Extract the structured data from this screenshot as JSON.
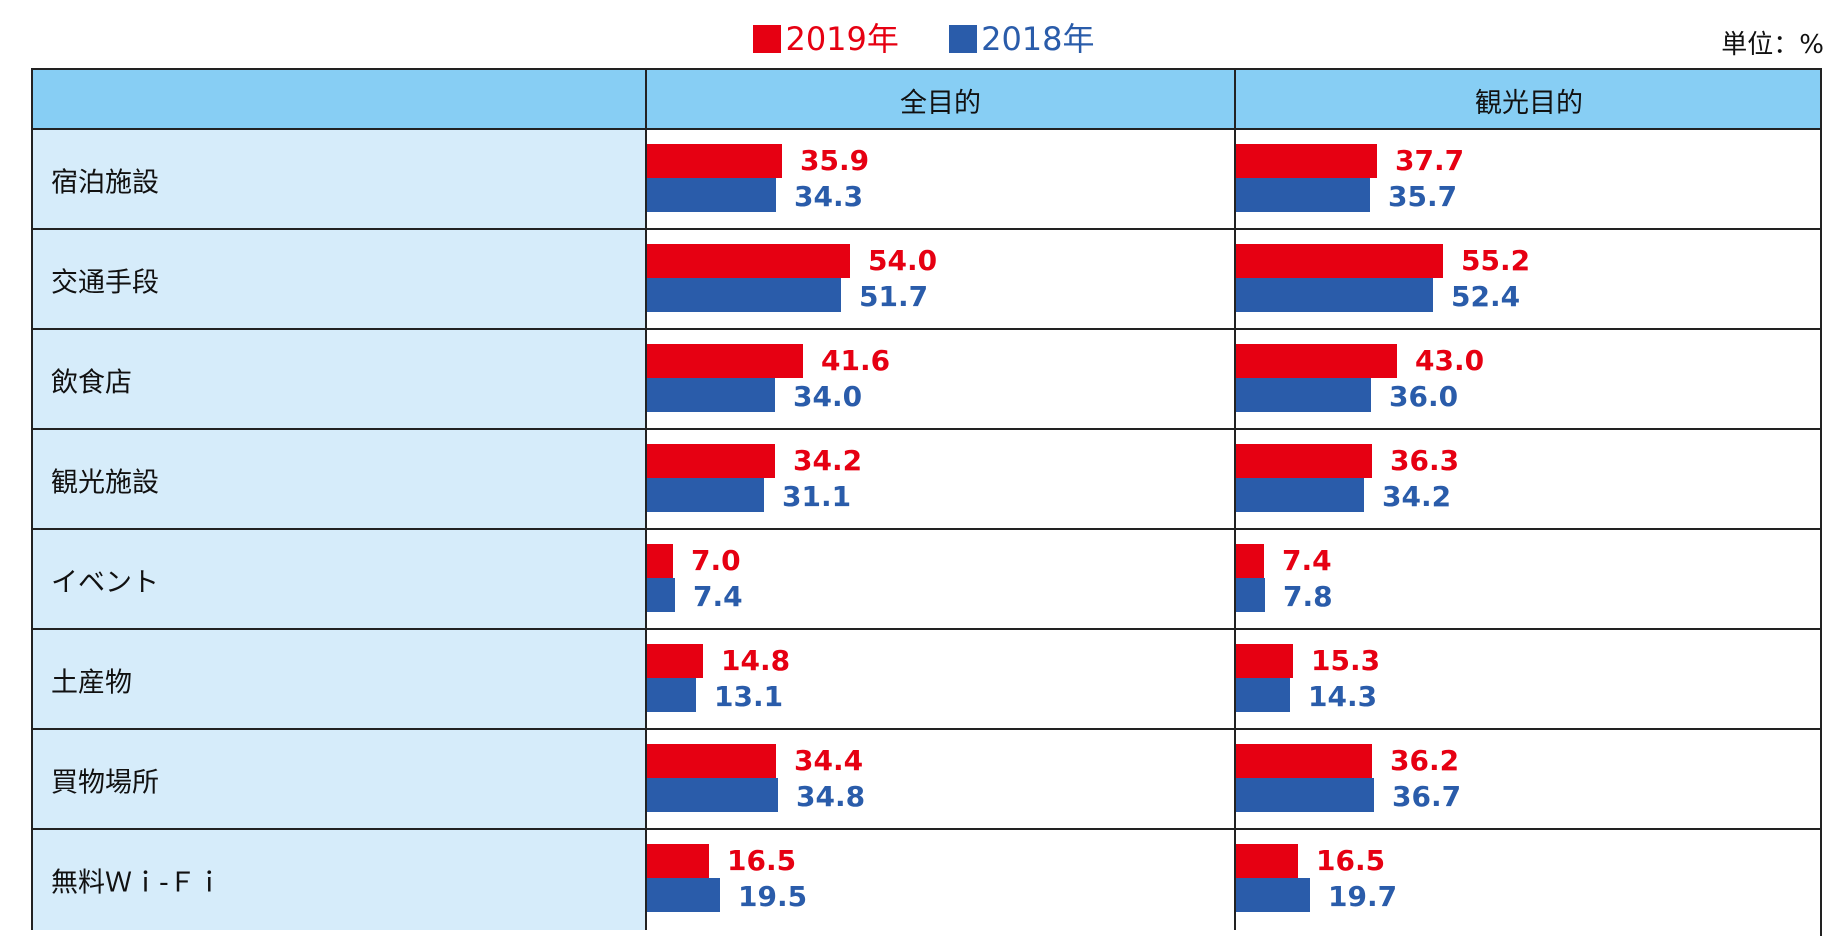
{
  "legend": [
    {
      "label": "2019年",
      "color": "#e60012"
    },
    {
      "label": "2018年",
      "color": "#2a5caa"
    }
  ],
  "unit_label": "単位：%",
  "columns": [
    "",
    "全目的",
    "観光目的"
  ],
  "chart_data": {
    "type": "bar",
    "orientation": "horizontal",
    "xlim": [
      0,
      100
    ],
    "categories": [
      "宿泊施設",
      "交通手段",
      "飲食店",
      "観光施設",
      "イベント",
      "土産物",
      "買物場所",
      "無料Ｗｉ-Ｆｉ"
    ],
    "panels": [
      {
        "title": "全目的",
        "series": [
          {
            "name": "2019年",
            "color": "#e60012",
            "values": [
              "35.9",
              "54.0",
              "41.6",
              "34.2",
              "7.0",
              "14.8",
              "34.4",
              "16.5"
            ]
          },
          {
            "name": "2018年",
            "color": "#2a5caa",
            "values": [
              "34.3",
              "51.7",
              "34.0",
              "31.1",
              "7.4",
              "13.1",
              "34.8",
              "19.5"
            ]
          }
        ]
      },
      {
        "title": "観光目的",
        "series": [
          {
            "name": "2019年",
            "color": "#e60012",
            "values": [
              "37.7",
              "55.2",
              "43.0",
              "36.3",
              "7.4",
              "15.3",
              "36.2",
              "16.5"
            ]
          },
          {
            "name": "2018年",
            "color": "#2a5caa",
            "values": [
              "35.7",
              "52.4",
              "36.0",
              "34.2",
              "7.8",
              "14.3",
              "36.7",
              "19.7"
            ]
          }
        ]
      }
    ]
  }
}
